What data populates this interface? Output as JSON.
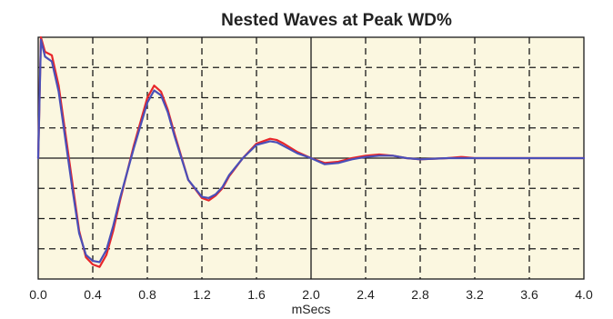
{
  "chart_data": {
    "type": "line",
    "title": "Nested Waves at Peak WD%",
    "xlabel": "mSecs",
    "ylabel": "",
    "xlim": [
      0.0,
      4.0
    ],
    "ylim": [
      -1.0,
      1.0
    ],
    "x_ticks": [
      "0.0",
      "0.4",
      "0.8",
      "1.2",
      "1.6",
      "2.0",
      "2.4",
      "2.8",
      "3.2",
      "3.6",
      "4.0"
    ],
    "grid": true,
    "background_color": "#fbf7e0",
    "series": [
      {
        "color": "#e8262a",
        "x": [
          0.0,
          0.02,
          0.05,
          0.1,
          0.15,
          0.2,
          0.25,
          0.3,
          0.35,
          0.4,
          0.45,
          0.5,
          0.55,
          0.6,
          0.7,
          0.8,
          0.85,
          0.9,
          0.95,
          1.0,
          1.1,
          1.2,
          1.25,
          1.3,
          1.35,
          1.4,
          1.5,
          1.6,
          1.7,
          1.75,
          1.8,
          1.9,
          2.0,
          2.1,
          2.2,
          2.3,
          2.4,
          2.5,
          2.6,
          2.7,
          2.8,
          3.0,
          3.1,
          3.2,
          3.4,
          3.6,
          3.8,
          4.0
        ],
        "values": [
          0.0,
          1.0,
          0.88,
          0.85,
          0.6,
          0.2,
          -0.2,
          -0.6,
          -0.82,
          -0.88,
          -0.9,
          -0.8,
          -0.6,
          -0.35,
          0.1,
          0.5,
          0.6,
          0.55,
          0.4,
          0.2,
          -0.18,
          -0.33,
          -0.35,
          -0.31,
          -0.25,
          -0.15,
          0.0,
          0.12,
          0.16,
          0.15,
          0.12,
          0.05,
          0.0,
          -0.04,
          -0.03,
          0.0,
          0.02,
          0.03,
          0.02,
          0.0,
          -0.01,
          0.0,
          0.01,
          0.0,
          0.0,
          0.0,
          0.0,
          0.0
        ]
      },
      {
        "color": "#4a4fb8",
        "x": [
          0.0,
          0.02,
          0.05,
          0.1,
          0.15,
          0.2,
          0.25,
          0.3,
          0.35,
          0.4,
          0.45,
          0.5,
          0.55,
          0.6,
          0.7,
          0.8,
          0.85,
          0.9,
          0.95,
          1.0,
          1.1,
          1.2,
          1.25,
          1.3,
          1.35,
          1.4,
          1.5,
          1.6,
          1.7,
          1.75,
          1.8,
          1.9,
          2.0,
          2.1,
          2.2,
          2.3,
          2.4,
          2.5,
          2.6,
          2.7,
          2.8,
          3.0,
          3.1,
          3.2,
          3.4,
          3.6,
          3.8,
          4.0
        ],
        "values": [
          0.0,
          0.98,
          0.84,
          0.8,
          0.55,
          0.15,
          -0.25,
          -0.62,
          -0.8,
          -0.85,
          -0.86,
          -0.76,
          -0.56,
          -0.33,
          0.08,
          0.46,
          0.56,
          0.52,
          0.38,
          0.18,
          -0.18,
          -0.32,
          -0.33,
          -0.3,
          -0.24,
          -0.14,
          0.0,
          0.11,
          0.14,
          0.13,
          0.1,
          0.04,
          0.0,
          -0.05,
          -0.04,
          -0.01,
          0.01,
          0.02,
          0.02,
          0.0,
          -0.01,
          0.0,
          0.0,
          0.0,
          0.0,
          0.0,
          0.0,
          0.0
        ]
      }
    ]
  }
}
